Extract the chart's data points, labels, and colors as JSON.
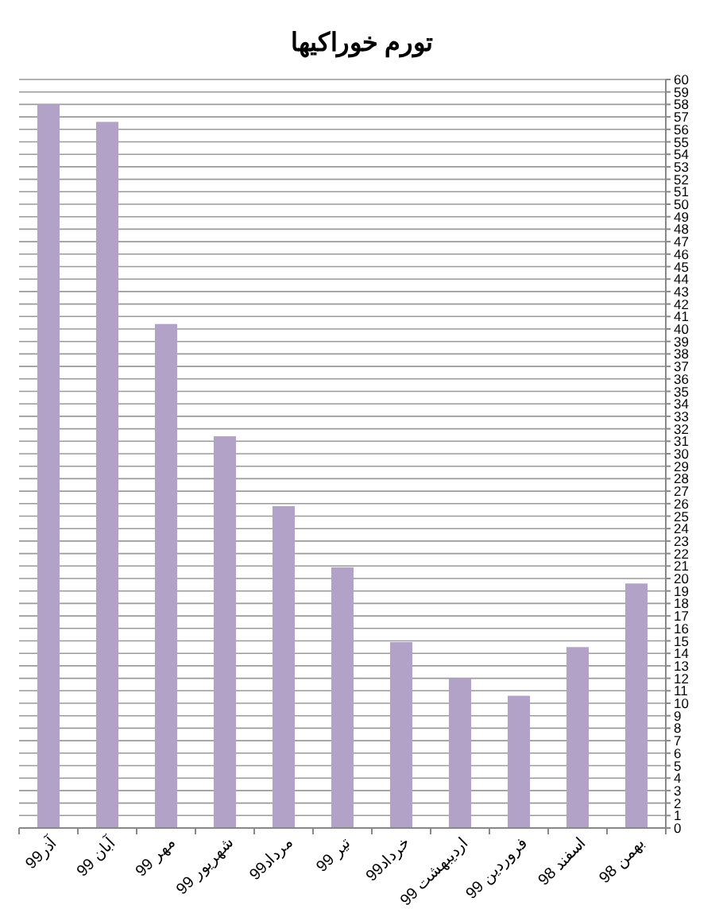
{
  "chart_data": {
    "type": "bar",
    "title": "تورم خوراکیها",
    "categories": [
      "آذر99",
      "آبان 99",
      "مهر 99",
      "شهریور 99",
      "مرداد99",
      "تیر 99",
      "خرداد99",
      "اردیبهشت 99",
      "فروردین 99",
      "اسفند 98",
      "بهمن 98"
    ],
    "values": [
      58,
      56.6,
      40.4,
      31.4,
      25.8,
      20.9,
      14.9,
      12,
      10.6,
      14.5,
      19.6
    ],
    "color": "#b3a2c7",
    "ylim": [
      0,
      60
    ],
    "yticks": [
      0,
      1,
      2,
      3,
      4,
      5,
      6,
      7,
      8,
      9,
      10,
      11,
      12,
      13,
      14,
      15,
      16,
      17,
      18,
      19,
      20,
      21,
      22,
      23,
      24,
      25,
      26,
      27,
      28,
      29,
      30,
      31,
      32,
      33,
      34,
      35,
      36,
      37,
      38,
      39,
      40,
      41,
      42,
      43,
      44,
      45,
      46,
      47,
      48,
      49,
      50,
      51,
      52,
      53,
      54,
      55,
      56,
      57,
      58,
      59,
      60
    ],
    "grid": "y"
  }
}
